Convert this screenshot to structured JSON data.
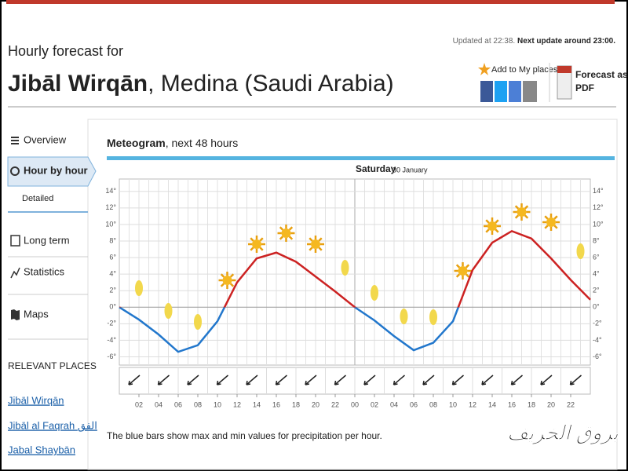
{
  "header": {
    "updated": "Updated at 22:38.",
    "next_update": "Next update around 23:00.",
    "intro": "Hourly forecast for",
    "place": "Jibāl Wirqān",
    "region": ", Medina (Saudi Arabia)",
    "add_place": "Add to My places",
    "pdf_line1": "Forecast as",
    "pdf_line2": "PDF"
  },
  "nav": {
    "items": [
      "Overview",
      "Hour by hour",
      "Detailed",
      "Long term",
      "Statistics",
      "Maps"
    ],
    "relevant_heading": "RELEVANT PLACES",
    "places": [
      "Jibāl Wirqān",
      "Jibāl al Faqrah الفق",
      "Jabal Shaybān"
    ]
  },
  "chart_data": {
    "type": "line",
    "title": "Meteogram",
    "subtitle": ", next 48 hours",
    "day_label": "Saturday",
    "date_label": "30 January",
    "x": [
      0,
      2,
      4,
      6,
      8,
      10,
      12,
      14,
      16,
      18,
      20,
      22,
      24,
      26,
      28,
      30,
      32,
      34,
      36,
      38,
      40,
      42,
      44,
      46,
      48
    ],
    "series": [
      {
        "name": "Temperature",
        "color": "#cc2222",
        "values": [
          0,
          -1.5,
          -3.3,
          -5.4,
          -4.6,
          -1.7,
          3,
          5.9,
          6.6,
          5.5,
          3.7,
          1.9,
          0,
          -1.6,
          -3.5,
          -5.2,
          -4.3,
          -1.7,
          4.5,
          7.8,
          9.2,
          8.3,
          5.9,
          3.3,
          0.9
        ]
      }
    ],
    "below_zero_color": "#2277cc",
    "xlim": [
      0,
      48
    ],
    "xticks": [
      {
        "value": 2,
        "label": "02"
      },
      {
        "value": 4,
        "label": "04"
      },
      {
        "value": 6,
        "label": "06"
      },
      {
        "value": 8,
        "label": "08"
      },
      {
        "value": 10,
        "label": "10"
      },
      {
        "value": 12,
        "label": "12"
      },
      {
        "value": 14,
        "label": "14"
      },
      {
        "value": 16,
        "label": "16"
      },
      {
        "value": 18,
        "label": "18"
      },
      {
        "value": 20,
        "label": "20"
      },
      {
        "value": 22,
        "label": "22"
      },
      {
        "value": 24,
        "label": "00"
      },
      {
        "value": 26,
        "label": "02"
      },
      {
        "value": 28,
        "label": "04"
      },
      {
        "value": 30,
        "label": "06"
      },
      {
        "value": 32,
        "label": "08"
      },
      {
        "value": 34,
        "label": "10"
      },
      {
        "value": 36,
        "label": "12"
      },
      {
        "value": 38,
        "label": "14"
      },
      {
        "value": 40,
        "label": "16"
      },
      {
        "value": 42,
        "label": "18"
      },
      {
        "value": 44,
        "label": "20"
      },
      {
        "value": 46,
        "label": "22"
      }
    ],
    "ylim": [
      -7,
      15.5
    ],
    "yticks": [
      {
        "value": -6,
        "label": "-6°"
      },
      {
        "value": -4,
        "label": "-4°"
      },
      {
        "value": -2,
        "label": "-2°"
      },
      {
        "value": 0,
        "label": "0°"
      },
      {
        "value": 2,
        "label": "2°"
      },
      {
        "value": 4,
        "label": "4°"
      },
      {
        "value": 6,
        "label": "6°"
      },
      {
        "value": 8,
        "label": "8°"
      },
      {
        "value": 10,
        "label": "10°"
      },
      {
        "value": 12,
        "label": "12°"
      },
      {
        "value": 14,
        "label": "14°"
      }
    ],
    "grid": true,
    "note": "The blue bars show max and min values for precipitation per hour."
  },
  "watermark": "بروق الخريف"
}
